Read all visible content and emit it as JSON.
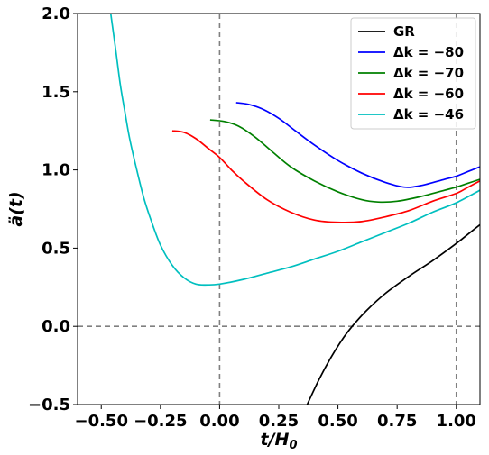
{
  "chart_data": {
    "type": "line",
    "xlabel": "t/H",
    "xlabel_sub": "0",
    "ylabel": "ä(t)",
    "xlim": [
      -0.6,
      1.1
    ],
    "ylim": [
      -0.5,
      2.0
    ],
    "xticks": [
      -0.5,
      -0.25,
      0.0,
      0.25,
      0.5,
      0.75,
      1.0
    ],
    "xtick_labels": [
      "−0.50",
      "−0.25",
      "0.00",
      "0.25",
      "0.50",
      "0.75",
      "1.00"
    ],
    "yticks": [
      -0.5,
      0.0,
      0.5,
      1.0,
      1.5,
      2.0
    ],
    "ytick_labels": [
      "−0.5",
      "0.0",
      "0.5",
      "1.0",
      "1.5",
      "2.0"
    ],
    "reference_lines": {
      "vertical": [
        0.0,
        1.0
      ],
      "horizontal": [
        0.0
      ],
      "style": "dashed",
      "color": "#808080"
    },
    "legend": {
      "position": "top-right"
    },
    "grid": false,
    "series": [
      {
        "name": "GR",
        "color": "#000000",
        "points": [
          [
            0.37,
            -0.5
          ],
          [
            0.42,
            -0.34
          ],
          [
            0.47,
            -0.2
          ],
          [
            0.52,
            -0.08
          ],
          [
            0.56,
            0.0
          ],
          [
            0.62,
            0.1
          ],
          [
            0.7,
            0.21
          ],
          [
            0.8,
            0.32
          ],
          [
            0.9,
            0.42
          ],
          [
            1.0,
            0.53
          ],
          [
            1.05,
            0.59
          ],
          [
            1.1,
            0.65
          ]
        ]
      },
      {
        "name": "Δk = −80",
        "color": "#0000ff",
        "points": [
          [
            0.07,
            1.43
          ],
          [
            0.12,
            1.42
          ],
          [
            0.18,
            1.39
          ],
          [
            0.25,
            1.33
          ],
          [
            0.32,
            1.25
          ],
          [
            0.4,
            1.16
          ],
          [
            0.5,
            1.06
          ],
          [
            0.6,
            0.98
          ],
          [
            0.7,
            0.92
          ],
          [
            0.78,
            0.89
          ],
          [
            0.85,
            0.9
          ],
          [
            0.95,
            0.94
          ],
          [
            1.0,
            0.96
          ],
          [
            1.05,
            0.99
          ],
          [
            1.1,
            1.02
          ]
        ]
      },
      {
        "name": "Δk = −70",
        "color": "#008000",
        "points": [
          [
            -0.04,
            1.32
          ],
          [
            0.02,
            1.31
          ],
          [
            0.08,
            1.28
          ],
          [
            0.15,
            1.21
          ],
          [
            0.22,
            1.12
          ],
          [
            0.3,
            1.02
          ],
          [
            0.4,
            0.93
          ],
          [
            0.5,
            0.86
          ],
          [
            0.6,
            0.81
          ],
          [
            0.67,
            0.795
          ],
          [
            0.75,
            0.8
          ],
          [
            0.85,
            0.83
          ],
          [
            0.95,
            0.87
          ],
          [
            1.0,
            0.89
          ],
          [
            1.05,
            0.915
          ],
          [
            1.1,
            0.94
          ]
        ]
      },
      {
        "name": "Δk = −60",
        "color": "#ff0000",
        "points": [
          [
            -0.2,
            1.25
          ],
          [
            -0.15,
            1.24
          ],
          [
            -0.1,
            1.2
          ],
          [
            -0.05,
            1.14
          ],
          [
            0.0,
            1.08
          ],
          [
            0.05,
            1.0
          ],
          [
            0.1,
            0.93
          ],
          [
            0.2,
            0.81
          ],
          [
            0.3,
            0.73
          ],
          [
            0.4,
            0.68
          ],
          [
            0.5,
            0.665
          ],
          [
            0.6,
            0.67
          ],
          [
            0.7,
            0.7
          ],
          [
            0.8,
            0.74
          ],
          [
            0.9,
            0.8
          ],
          [
            1.0,
            0.85
          ],
          [
            1.05,
            0.89
          ],
          [
            1.1,
            0.93
          ]
        ]
      },
      {
        "name": "Δk = −46",
        "color": "#00bfbf",
        "points": [
          [
            -0.46,
            2.0
          ],
          [
            -0.44,
            1.78
          ],
          [
            -0.42,
            1.55
          ],
          [
            -0.4,
            1.37
          ],
          [
            -0.38,
            1.2
          ],
          [
            -0.35,
            1.0
          ],
          [
            -0.32,
            0.82
          ],
          [
            -0.29,
            0.68
          ],
          [
            -0.25,
            0.52
          ],
          [
            -0.2,
            0.39
          ],
          [
            -0.15,
            0.31
          ],
          [
            -0.1,
            0.27
          ],
          [
            -0.05,
            0.265
          ],
          [
            0.0,
            0.27
          ],
          [
            0.1,
            0.3
          ],
          [
            0.2,
            0.34
          ],
          [
            0.3,
            0.38
          ],
          [
            0.4,
            0.43
          ],
          [
            0.5,
            0.48
          ],
          [
            0.6,
            0.54
          ],
          [
            0.7,
            0.6
          ],
          [
            0.8,
            0.66
          ],
          [
            0.9,
            0.73
          ],
          [
            1.0,
            0.79
          ],
          [
            1.1,
            0.87
          ]
        ]
      }
    ]
  }
}
